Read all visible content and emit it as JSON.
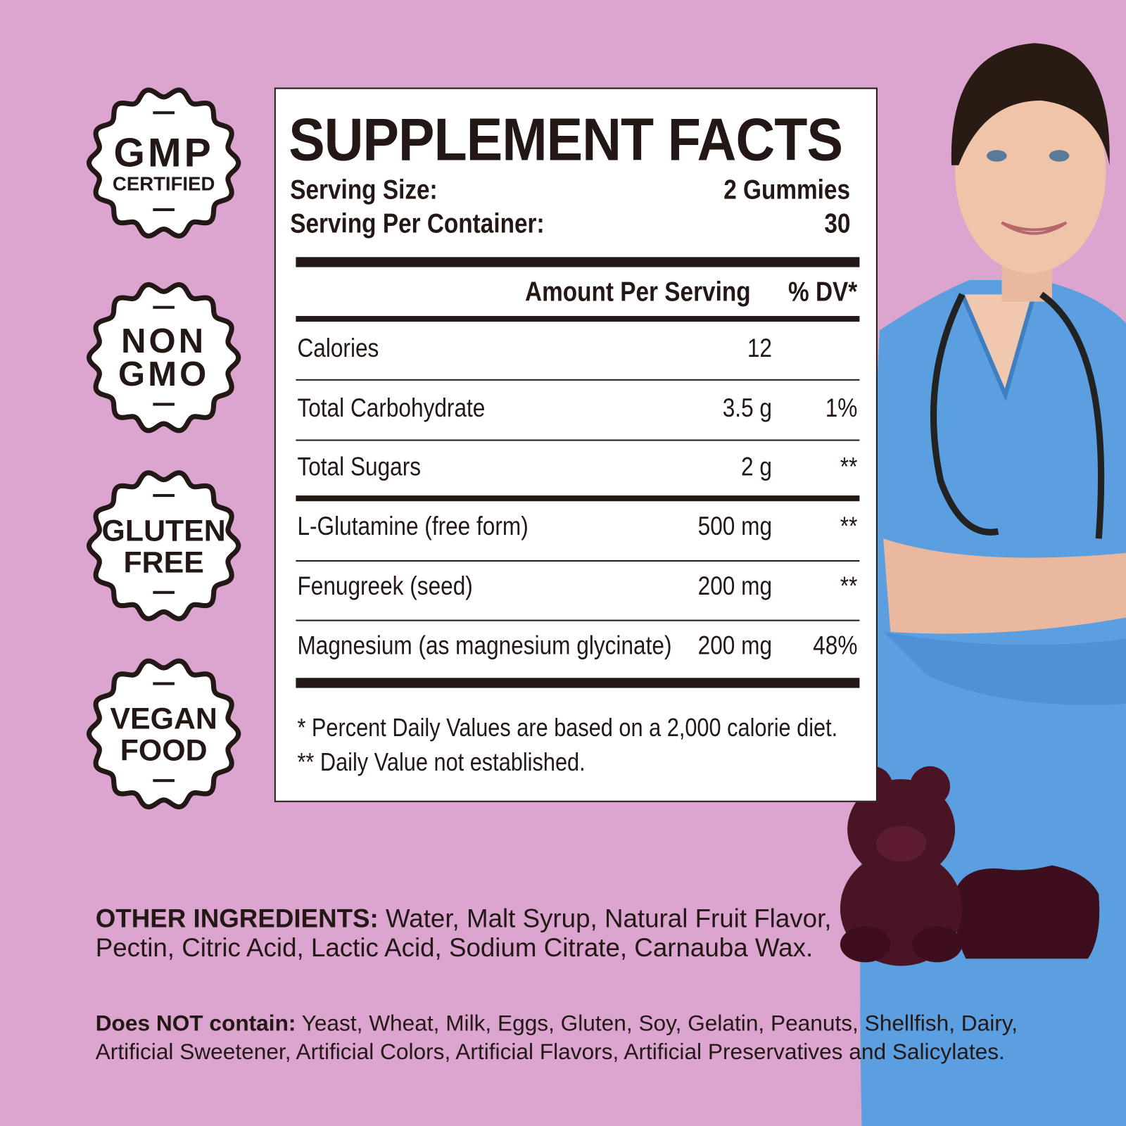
{
  "badges": [
    {
      "line1": "GMP",
      "line2": "CERTIFIED"
    },
    {
      "line1": "NON",
      "line2": "GMO"
    },
    {
      "line1": "GLUTEN",
      "line2": "FREE"
    },
    {
      "line1": "VEGAN",
      "line2": "FOOD"
    }
  ],
  "facts": {
    "title": "SUPPLEMENT FACTS",
    "serving_size_label": "Serving Size:",
    "serving_size_value": "2 Gummies",
    "servings_label": "Serving Per Container:",
    "servings_value": "30",
    "amount_header": "Amount Per Serving",
    "dv_header": "% DV*",
    "rows": [
      {
        "name": "Calories",
        "amount": "12",
        "dv": ""
      },
      {
        "name": "Total Carbohydrate",
        "amount": "3.5 g",
        "dv": "1%"
      },
      {
        "name": "Total Sugars",
        "amount": "2 g",
        "dv": "**"
      },
      {
        "name": "L-Glutamine (free form)",
        "amount": "500 mg",
        "dv": "**"
      },
      {
        "name": "Fenugreek (seed)",
        "amount": "200 mg",
        "dv": "**"
      },
      {
        "name": "Magnesium (as magnesium glycinate)",
        "amount": "200 mg",
        "dv": "48%"
      }
    ],
    "footnote1": "* Percent Daily Values are based on a 2,000 calorie diet.",
    "footnote2": "** Daily Value not established."
  },
  "other_ingredients": {
    "label": "OTHER INGREDIENTS:",
    "line1": " Water, Malt Syrup, Natural Fruit Flavor,",
    "line2": "Pectin, Citric Acid, Lactic Acid, Sodium Citrate, Carnauba Wax."
  },
  "does_not_contain": {
    "label": "Does NOT contain:",
    "line1": " Yeast, Wheat, Milk, Eggs, Gluten, Soy, Gelatin, Peanuts, Shellfish, Dairy,",
    "line2": "Artificial Sweetener, Artificial Colors, Artificial Flavors, Artificial Preservatives and Salicylates."
  },
  "colors": {
    "background": "#dba5cf",
    "text": "#231815",
    "scrubs": "#5b9fe0",
    "gummy": "#4a1424"
  }
}
